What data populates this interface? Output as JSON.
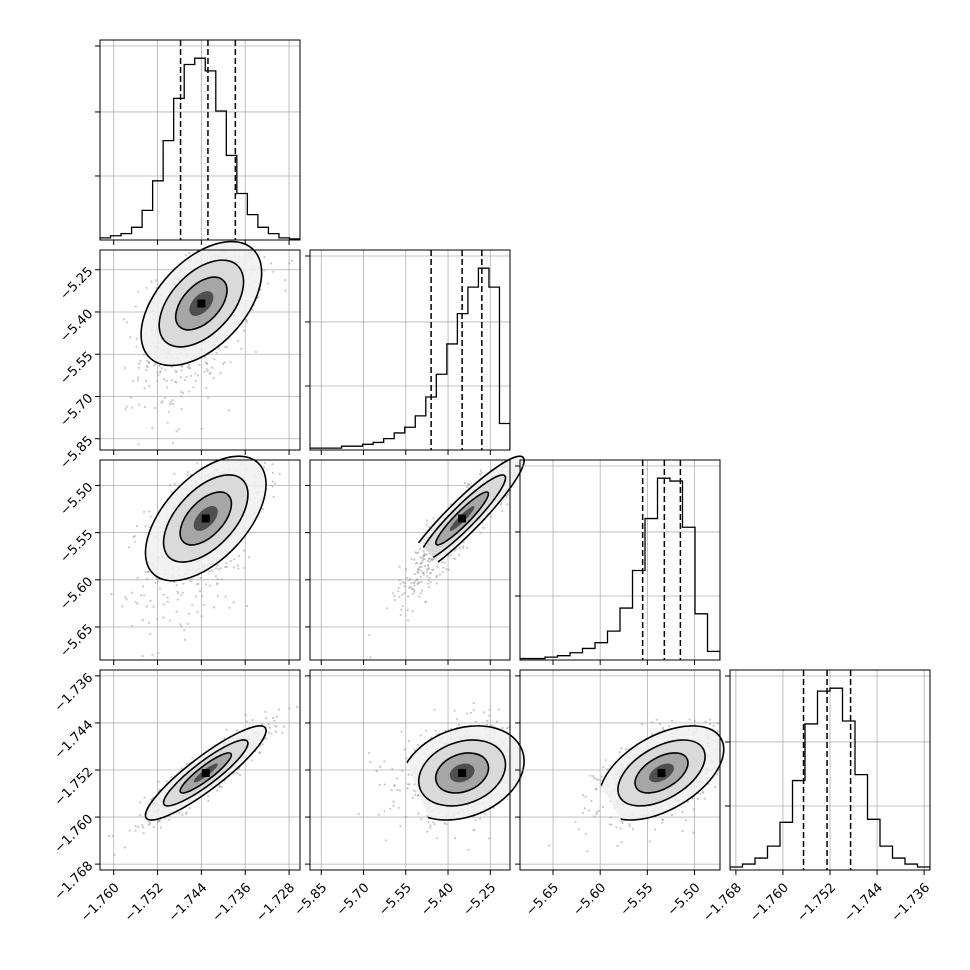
{
  "chart_data": {
    "type": "corner",
    "grid": true,
    "parameters": [
      {
        "ticks": [
          -1.76,
          -1.752,
          -1.744,
          -1.736,
          -1.728
        ],
        "tick_labels": [
          "−1.760",
          "−1.752",
          "−1.744",
          "−1.736",
          "−1.728"
        ],
        "range": [
          -1.7625,
          -1.726
        ],
        "quantiles": [
          -1.7478,
          -1.7428,
          -1.7378
        ],
        "histogram": [
          1,
          2,
          3,
          6,
          14,
          28,
          47,
          67,
          83,
          86,
          80,
          61,
          40,
          22,
          12,
          6,
          3,
          1,
          0.5
        ]
      },
      {
        "ticks": [
          -5.85,
          -5.7,
          -5.55,
          -5.4,
          -5.25
        ],
        "tick_labels": [
          "−5.85",
          "−5.70",
          "−5.55",
          "−5.40",
          "−5.25"
        ],
        "range": [
          -5.89,
          -5.18
        ],
        "quantiles": [
          -5.46,
          -5.35,
          -5.28
        ],
        "histogram": [
          0.5,
          0.5,
          0.5,
          1,
          1,
          1.5,
          2,
          3,
          4.5,
          6,
          9,
          14,
          20,
          28,
          36,
          43,
          48,
          43,
          7
        ]
      },
      {
        "ticks": [
          -5.65,
          -5.6,
          -5.55,
          -5.5
        ],
        "tick_labels": [
          "−5.65",
          "−5.60",
          "−5.55",
          "−5.50"
        ],
        "range": [
          -5.685,
          -5.473
        ],
        "quantiles": [
          -5.555,
          -5.532,
          -5.515
        ],
        "histogram": [
          0.5,
          0.5,
          1,
          1.5,
          2.5,
          4,
          6,
          10,
          18,
          31,
          49,
          63,
          62,
          46,
          16,
          3
        ]
      },
      {
        "ticks": [
          -1.768,
          -1.76,
          -1.752,
          -1.744,
          -1.736
        ],
        "tick_labels": [
          "−1.768",
          "−1.760",
          "−1.752",
          "−1.744",
          "−1.736"
        ],
        "range": [
          -1.769,
          -1.735
        ],
        "quantiles": [
          -1.7565,
          -1.7525,
          -1.7485
        ],
        "histogram": [
          1,
          2,
          4,
          8,
          16,
          30,
          49,
          60,
          61,
          50,
          32,
          17,
          8,
          4,
          2,
          1
        ]
      }
    ],
    "pairs": [
      {
        "x_index": 0,
        "y_index": 1,
        "mean": [
          -1.744,
          -5.37
        ],
        "sd": [
          0.0055,
          0.11
        ],
        "corr": 0.5,
        "skew_y": 0.7
      },
      {
        "x_index": 0,
        "y_index": 2,
        "mean": [
          -1.7432,
          -5.535
        ],
        "sd": [
          0.0055,
          0.033
        ],
        "corr": 0.55,
        "skew_y": 0.6
      },
      {
        "x_index": 1,
        "y_index": 2,
        "mean": [
          -5.35,
          -5.535
        ],
        "sd": [
          0.11,
          0.033
        ],
        "corr": 0.93,
        "skew_y": 0.3
      },
      {
        "x_index": 0,
        "y_index": 3,
        "mean": [
          -1.7432,
          -1.7525
        ],
        "sd": [
          0.0055,
          0.004
        ],
        "corr": 0.9,
        "skew_y": 0.0
      },
      {
        "x_index": 1,
        "y_index": 3,
        "mean": [
          -5.35,
          -1.7525
        ],
        "sd": [
          0.11,
          0.004
        ],
        "corr": 0.25,
        "skew_y": 0.0
      },
      {
        "x_index": 2,
        "y_index": 3,
        "mean": [
          -5.535,
          -1.7525
        ],
        "sd": [
          0.033,
          0.004
        ],
        "corr": 0.5,
        "skew_y": 0.0
      }
    ]
  }
}
